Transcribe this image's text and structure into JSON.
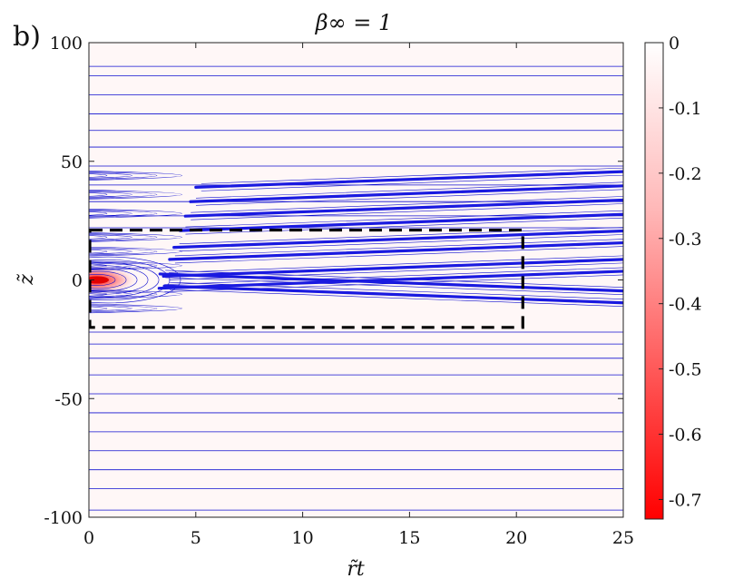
{
  "figure": {
    "panel_label": "b)",
    "title": "β∞ = 1",
    "xlabel": "r̃t",
    "ylabel": "z̃"
  },
  "chart_data": {
    "type": "contour",
    "title": "β∞ = 1",
    "xlabel": "r̃t",
    "ylabel": "z̃",
    "xlim": [
      0,
      25
    ],
    "ylim": [
      -100,
      100
    ],
    "xticks": [
      0,
      5,
      10,
      15,
      20,
      25
    ],
    "yticks": [
      -100,
      -50,
      0,
      50,
      100
    ],
    "colorbar": {
      "min": -0.73,
      "max": 0.0,
      "ticks": [
        0,
        -0.1,
        -0.2,
        -0.3,
        -0.4,
        -0.5,
        -0.6,
        -0.7
      ],
      "tick_labels": [
        "0",
        "-0.1",
        "-0.2",
        "-0.3",
        "-0.4",
        "-0.5",
        "-0.6",
        "-0.7"
      ],
      "colors": [
        "#ffffff",
        "#ff0000"
      ]
    },
    "peak": {
      "x": 0.3,
      "y": 0,
      "value": -0.73
    },
    "contour_color": "#1010d0",
    "horizontal_levels_z": [
      -97,
      -88,
      -80,
      -72,
      -64,
      -56,
      -48,
      -40,
      -33,
      -27,
      -22,
      22,
      27,
      33,
      40,
      48,
      56,
      63,
      70,
      78,
      86,
      90
    ],
    "wave_bands_z_at_r20": [
      -8,
      -3,
      2,
      7,
      14,
      19,
      26,
      32,
      38,
      44
    ],
    "wave_band_slope": 0.55,
    "dashed_box": {
      "x": [
        0,
        20.3
      ],
      "z": [
        -20,
        21
      ]
    }
  }
}
